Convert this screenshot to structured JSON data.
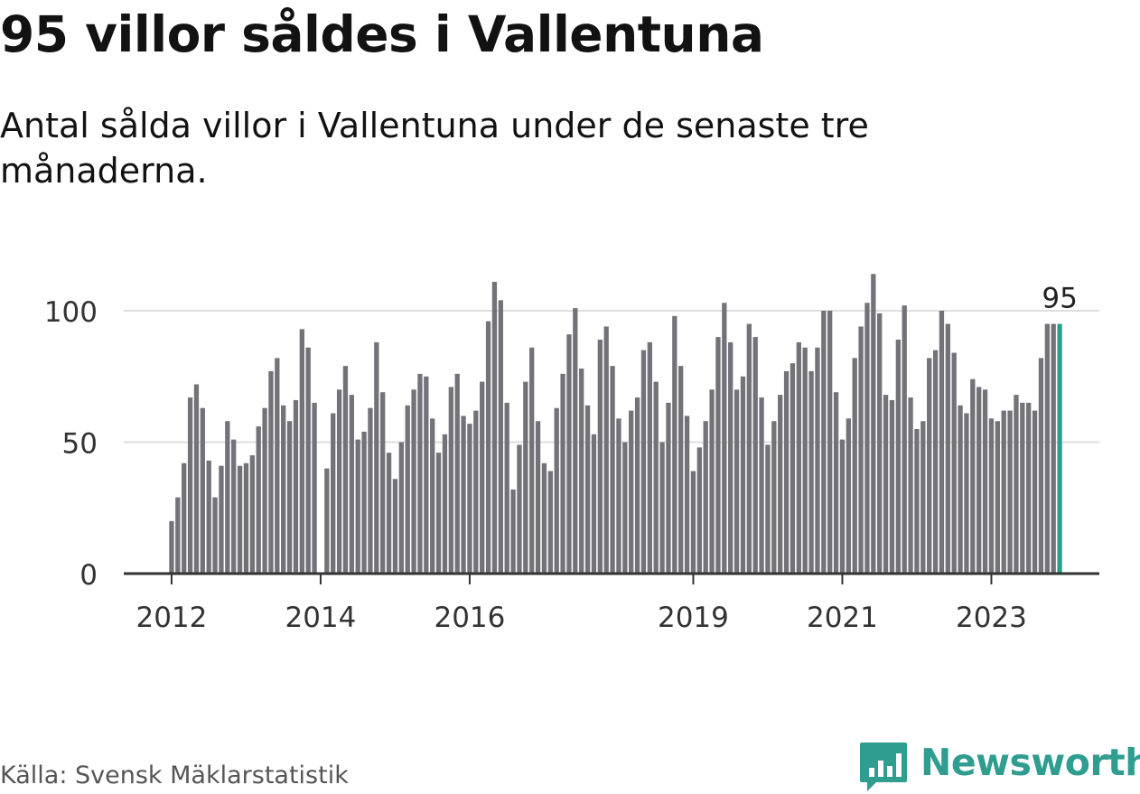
{
  "title": "95 villor såldes i Vallentuna",
  "subtitle": "Antal sålda villor i Vallentuna under de senaste tre månaderna.",
  "source": "Källa: Svensk Mäklarstatistik",
  "brand": {
    "name": "Newsworthy",
    "logo_icon": "bar-chart-speech-bubble-icon",
    "color": "#2f9d8f"
  },
  "colors": {
    "bar": "#737278",
    "highlight": "#2a9d8f",
    "grid": "#dedede",
    "axis": "#333333"
  },
  "chart_data": {
    "type": "bar",
    "title": "95 villor såldes i Vallentuna",
    "xlabel": "",
    "ylabel": "",
    "ylim": [
      0,
      115
    ],
    "yticks": [
      0,
      50,
      100
    ],
    "xticks": [
      {
        "label": "2012",
        "index": 0
      },
      {
        "label": "2014",
        "index": 24
      },
      {
        "label": "2016",
        "index": 48
      },
      {
        "label": "2019",
        "index": 84
      },
      {
        "label": "2021",
        "index": 108
      },
      {
        "label": "2023",
        "index": 132
      }
    ],
    "start": "2012-01",
    "end": "2023-12",
    "highlight_label": "95",
    "values": [
      20,
      29,
      42,
      67,
      72,
      63,
      43,
      29,
      41,
      58,
      51,
      41,
      42,
      45,
      56,
      63,
      77,
      82,
      64,
      58,
      66,
      93,
      86,
      65,
      null,
      40,
      61,
      70,
      79,
      68,
      51,
      54,
      63,
      88,
      69,
      46,
      36,
      50,
      64,
      70,
      76,
      75,
      59,
      46,
      53,
      71,
      76,
      60,
      57,
      62,
      73,
      96,
      111,
      104,
      65,
      32,
      49,
      73,
      86,
      58,
      42,
      39,
      63,
      76,
      91,
      101,
      78,
      64,
      53,
      89,
      94,
      79,
      59,
      50,
      62,
      67,
      85,
      88,
      73,
      50,
      65,
      98,
      79,
      60,
      39,
      48,
      58,
      70,
      90,
      103,
      88,
      70,
      75,
      95,
      90,
      67,
      49,
      58,
      68,
      77,
      80,
      88,
      86,
      77,
      86,
      100,
      100,
      69,
      51,
      59,
      82,
      94,
      103,
      114,
      99,
      68,
      66,
      89,
      102,
      67,
      55,
      58,
      82,
      85,
      100,
      95,
      84,
      64,
      61,
      74,
      71,
      70,
      59,
      58,
      62,
      62,
      68,
      65,
      65,
      62,
      82,
      95,
      95,
      95
    ]
  }
}
